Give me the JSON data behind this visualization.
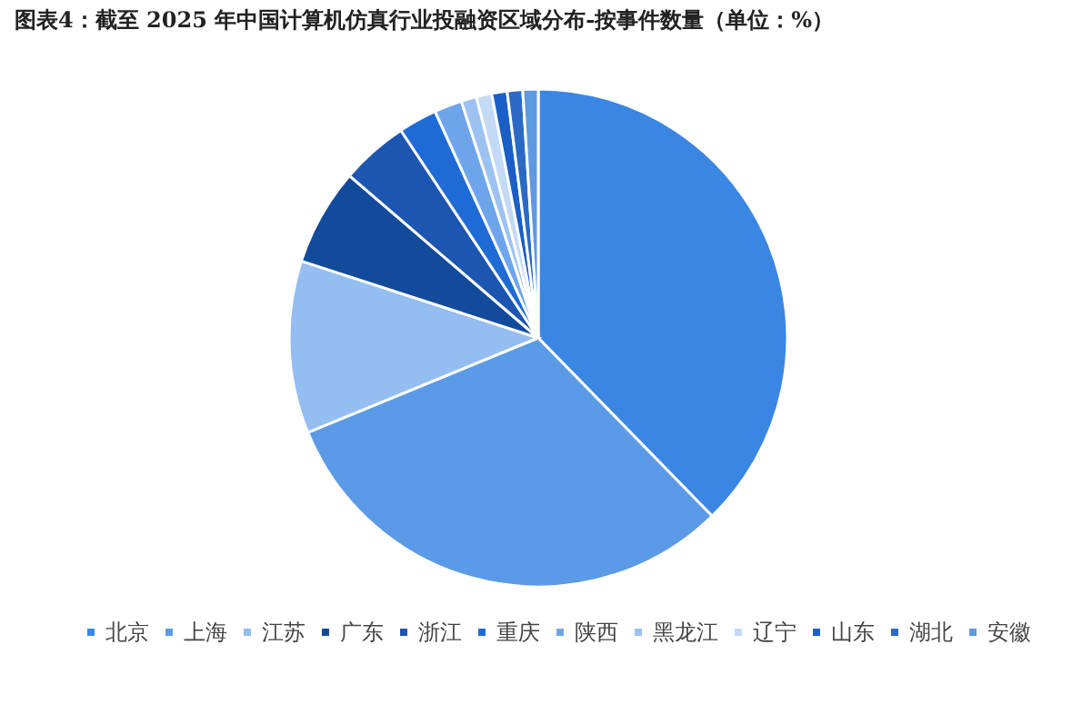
{
  "chart_data": {
    "type": "pie",
    "title": "图表4：截至 2025 年中国计算机仿真行业投融资区域分布-按事件数量（单位：%）",
    "categories": [
      "北京",
      "上海",
      "江苏",
      "广东",
      "浙江",
      "重庆",
      "陕西",
      "黑龙江",
      "辽宁",
      "山东",
      "湖北",
      "安徽"
    ],
    "values": [
      37.7,
      31.1,
      11.2,
      6.3,
      4.4,
      2.5,
      1.8,
      1,
      1,
      1,
      1,
      1
    ],
    "colors": [
      "#3a86e3",
      "#5b9ae6",
      "#94bdf2",
      "#124a9c",
      "#1c56b0",
      "#1e6bd6",
      "#6ea5ea",
      "#9cc2f2",
      "#c3d9f5",
      "#1a5fc8",
      "#2a6ac4",
      "#5f9ae0"
    ],
    "legend": "bottom"
  }
}
